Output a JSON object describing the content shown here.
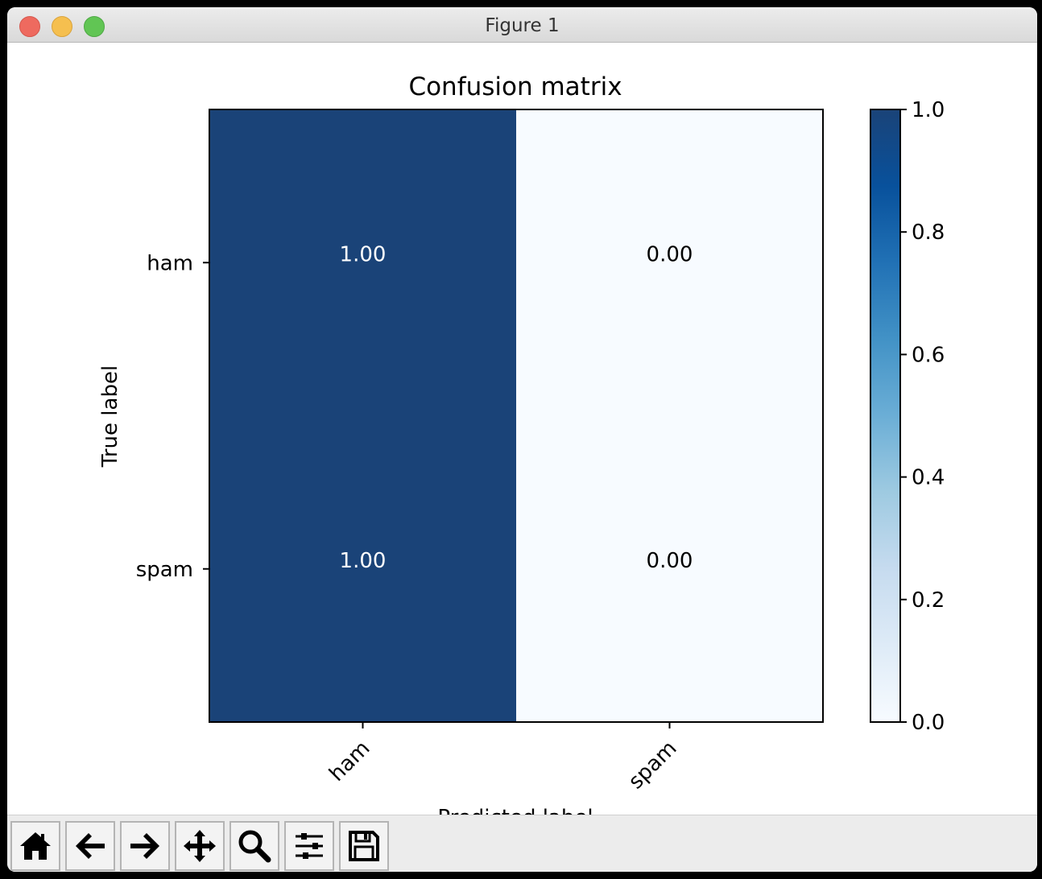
{
  "window": {
    "title": "Figure 1"
  },
  "chart_data": {
    "type": "heatmap",
    "title": "Confusion matrix",
    "xlabel": "Predicted label",
    "ylabel": "True label",
    "x_categories": [
      "ham",
      "spam"
    ],
    "y_categories": [
      "ham",
      "spam"
    ],
    "values": [
      [
        1.0,
        0.0
      ],
      [
        1.0,
        0.0
      ]
    ],
    "cell_labels": [
      [
        "1.00",
        "0.00"
      ],
      [
        "1.00",
        "0.00"
      ]
    ],
    "colormap": "Blues",
    "colors": {
      "high": "#1a4378",
      "low": "#f7fbff"
    },
    "colorbar": {
      "range": [
        0.0,
        1.0
      ],
      "ticks": [
        0.0,
        0.2,
        0.4,
        0.6,
        0.8,
        1.0
      ],
      "tick_labels": [
        "0.0",
        "0.2",
        "0.4",
        "0.6",
        "0.8",
        "1.0"
      ]
    }
  },
  "toolbar": {
    "buttons": [
      {
        "name": "home",
        "icon": "home-icon"
      },
      {
        "name": "back",
        "icon": "arrow-left-icon"
      },
      {
        "name": "forward",
        "icon": "arrow-right-icon"
      },
      {
        "name": "pan",
        "icon": "move-icon"
      },
      {
        "name": "zoom",
        "icon": "zoom-icon"
      },
      {
        "name": "configure",
        "icon": "sliders-icon"
      },
      {
        "name": "save",
        "icon": "save-icon"
      }
    ]
  }
}
